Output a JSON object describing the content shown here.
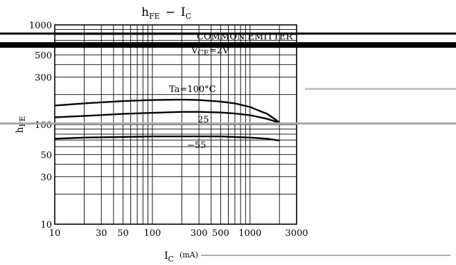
{
  "chart_data": {
    "type": "line",
    "title": {
      "main": "h",
      "main_sub": "FE",
      "dash": "−",
      "right": "I",
      "right_sub": "C"
    },
    "xlabel": {
      "text": "I",
      "sub": "C",
      "unit": "(mA)"
    },
    "ylabel": {
      "text": "h",
      "sub": "FE"
    },
    "x_scale": "log",
    "y_scale": "log",
    "xlim": [
      10,
      3000
    ],
    "ylim": [
      10,
      1000
    ],
    "grid": true,
    "x_ticks": [
      10,
      30,
      50,
      100,
      300,
      500,
      1000,
      3000
    ],
    "x_tick_labels": [
      "10",
      "30",
      "50",
      "100",
      "300",
      "500",
      "1000",
      "3000"
    ],
    "y_ticks": [
      10,
      30,
      50,
      100,
      300,
      500,
      1000
    ],
    "y_tick_labels": [
      "10",
      "30",
      "50",
      "100",
      "300",
      "500",
      "1000"
    ],
    "annotations": {
      "common_emitter": "COMMON EMITTER",
      "vce": {
        "text": "V",
        "sub": "CE",
        "value": "=2V"
      },
      "temp_header": "Ta=100°C"
    },
    "series": [
      {
        "name": "Ta=100°C",
        "x": [
          10,
          20,
          50,
          100,
          200,
          300,
          500,
          700,
          1000,
          1500,
          2000
        ],
        "y": [
          155,
          163,
          172,
          176,
          178,
          176,
          170,
          163,
          150,
          128,
          105
        ]
      },
      {
        "name": "25",
        "x": [
          10,
          20,
          50,
          100,
          200,
          300,
          500,
          700,
          1000,
          1500,
          2000
        ],
        "y": [
          118,
          122,
          128,
          131,
          134,
          134,
          132,
          129,
          124,
          114,
          104
        ]
      },
      {
        "name": "−55",
        "x": [
          10,
          20,
          50,
          100,
          200,
          300,
          500,
          700,
          1000,
          1500,
          2000
        ],
        "y": [
          72,
          74,
          75,
          76,
          76,
          76,
          76,
          75,
          74,
          72,
          69
        ]
      }
    ],
    "series_labels": [
      "Ta=100°C",
      "25",
      "−55"
    ]
  }
}
